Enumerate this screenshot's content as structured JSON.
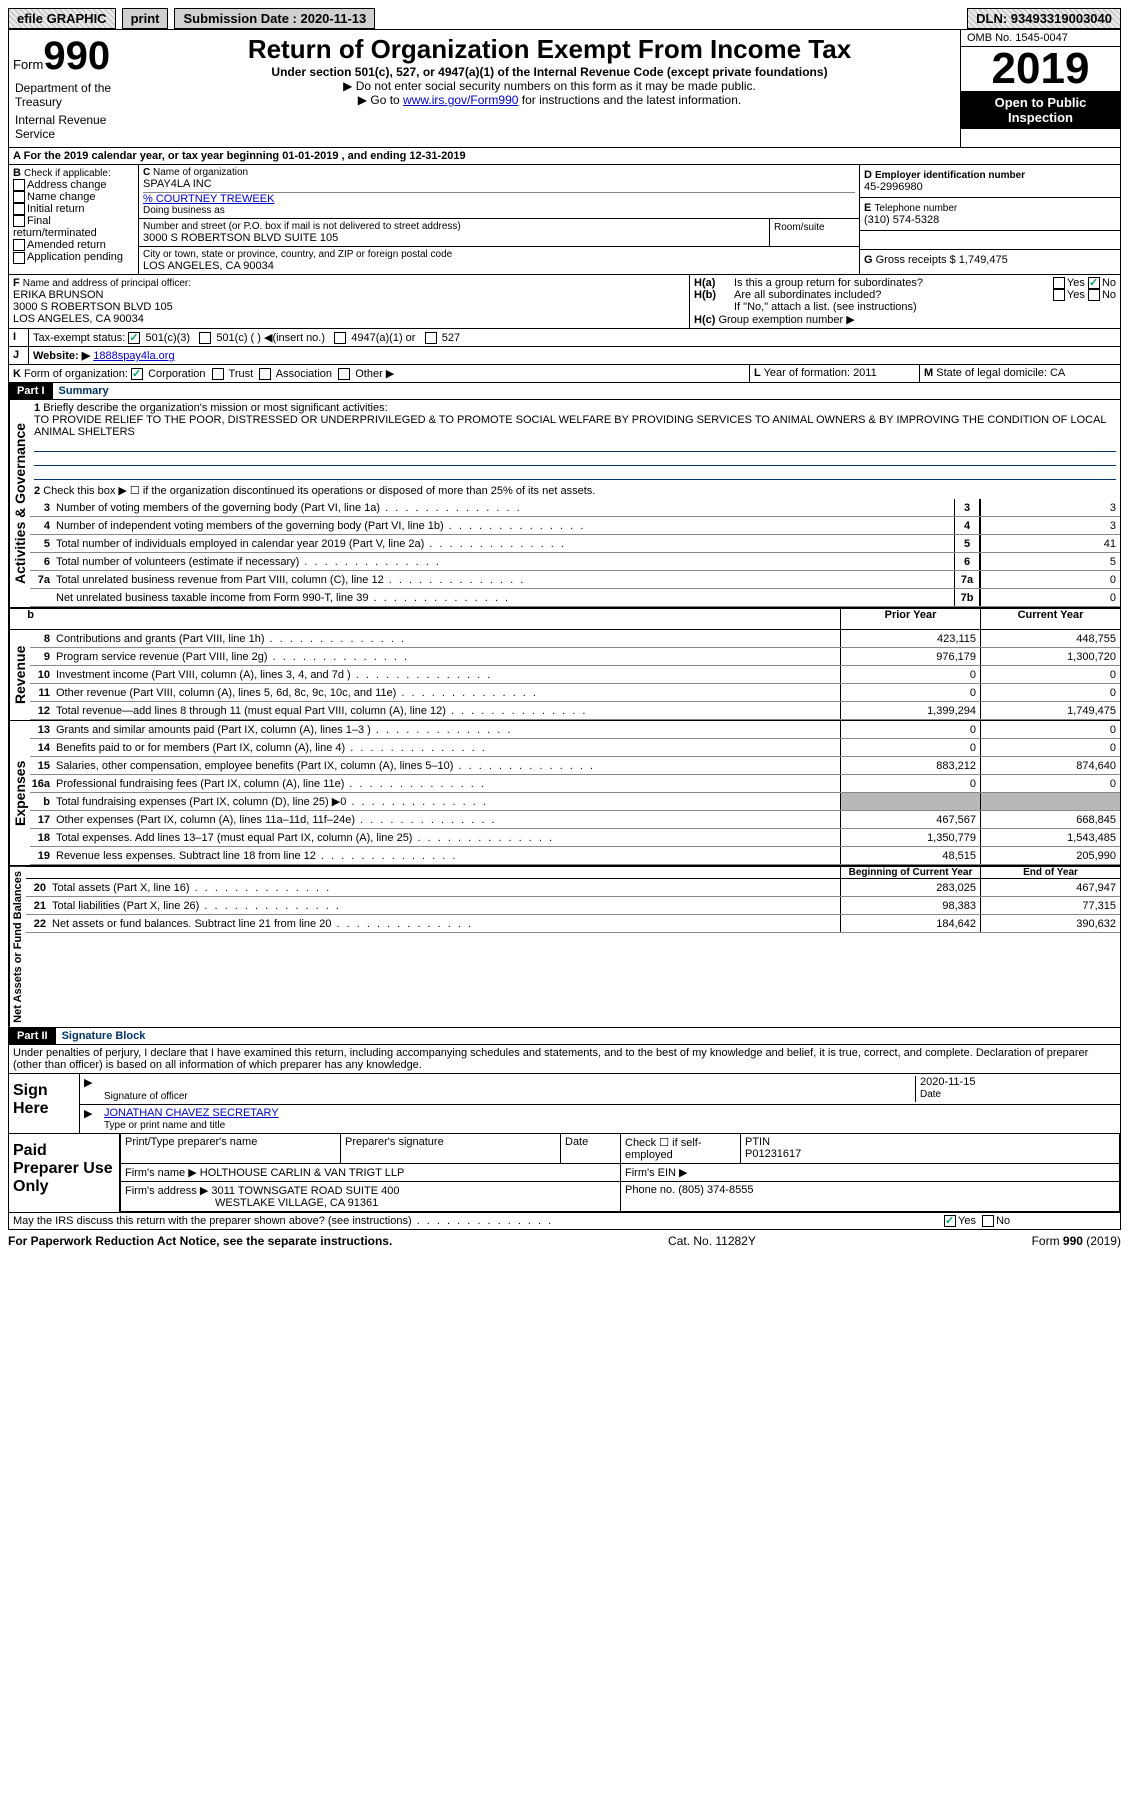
{
  "topbar": {
    "efile": "efile GRAPHIC",
    "print": "print",
    "sub_label": "Submission Date : 2020-11-13",
    "dln": "DLN: 93493319003040"
  },
  "header": {
    "form": "Form",
    "form_num": "990",
    "title": "Return of Organization Exempt From Income Tax",
    "sub1": "Under section 501(c), 527, or 4947(a)(1) of the Internal Revenue Code (except private foundations)",
    "sub2": "▶ Do not enter social security numbers on this form as it may be made public.",
    "sub3_pre": "▶ Go to ",
    "sub3_link": "www.irs.gov/Form990",
    "sub3_post": " for instructions and the latest information.",
    "omb": "OMB No. 1545-0047",
    "year": "2019",
    "open": "Open to Public Inspection",
    "dept1": "Department of the Treasury",
    "dept2": "Internal Revenue Service"
  },
  "A": {
    "text": "For the 2019 calendar year, or tax year beginning 01-01-2019     , and ending 12-31-2019"
  },
  "B": {
    "label": "Check if applicable:",
    "opts": [
      "Address change",
      "Name change",
      "Initial return",
      "Final return/terminated",
      "Amended return",
      "Application pending"
    ]
  },
  "C": {
    "name_lbl": "Name of organization",
    "name": "SPAY4LA INC",
    "care_lbl": "% COURTNEY TREWEEK",
    "dba_lbl": "Doing business as",
    "addr_lbl": "Number and street (or P.O. box if mail is not delivered to street address)",
    "room_lbl": "Room/suite",
    "addr": "3000 S ROBERTSON BLVD SUITE 105",
    "city_lbl": "City or town, state or province, country, and ZIP or foreign postal code",
    "city": "LOS ANGELES, CA  90034"
  },
  "D": {
    "lbl": "Employer identification number",
    "val": "45-2996980"
  },
  "E": {
    "lbl": "Telephone number",
    "val": "(310) 574-5328"
  },
  "G": {
    "lbl": "Gross receipts $",
    "val": "1,749,475"
  },
  "F": {
    "lbl": "Name and address of principal officer:",
    "name": "ERIKA BRUNSON",
    "addr1": "3000 S ROBERTSON BLVD 105",
    "addr2": "LOS ANGELES, CA  90034"
  },
  "H": {
    "a": "Is this a group return for subordinates?",
    "b": "Are all subordinates included?",
    "b_note": "If \"No,\" attach a list. (see instructions)",
    "c": "Group exemption number ▶",
    "yes": "Yes",
    "no": "No"
  },
  "I": {
    "lbl": "Tax-exempt status:",
    "opts": [
      "501(c)(3)",
      "501(c) (  ) ◀(insert no.)",
      "4947(a)(1) or",
      "527"
    ]
  },
  "J": {
    "lbl": "Website: ▶",
    "val": "1888spay4la.org"
  },
  "K": {
    "lbl": "Form of organization:",
    "opts": [
      "Corporation",
      "Trust",
      "Association",
      "Other ▶"
    ]
  },
  "L": {
    "lbl": "Year of formation:",
    "val": "2011"
  },
  "M": {
    "lbl": "State of legal domicile:",
    "val": "CA"
  },
  "part1": {
    "title": "Part I",
    "name": "Summary",
    "q1": "Briefly describe the organization's mission or most significant activities:",
    "mission": "TO PROVIDE RELIEF TO THE POOR, DISTRESSED OR UNDERPRIVILEGED & TO PROMOTE SOCIAL WELFARE BY PROVIDING SERVICES TO ANIMAL OWNERS & BY IMPROVING THE CONDITION OF LOCAL ANIMAL SHELTERS",
    "q2": "Check this box ▶ ☐  if the organization discontinued its operations or disposed of more than 25% of its net assets.",
    "lines_gov": [
      {
        "n": "3",
        "t": "Number of voting members of the governing body (Part VI, line 1a)",
        "box": "3",
        "v": "3"
      },
      {
        "n": "4",
        "t": "Number of independent voting members of the governing body (Part VI, line 1b)",
        "box": "4",
        "v": "3"
      },
      {
        "n": "5",
        "t": "Total number of individuals employed in calendar year 2019 (Part V, line 2a)",
        "box": "5",
        "v": "41"
      },
      {
        "n": "6",
        "t": "Total number of volunteers (estimate if necessary)",
        "box": "6",
        "v": "5"
      },
      {
        "n": "7a",
        "t": "Total unrelated business revenue from Part VIII, column (C), line 12",
        "box": "7a",
        "v": "0"
      },
      {
        "n": "",
        "t": "Net unrelated business taxable income from Form 990-T, line 39",
        "box": "7b",
        "v": "0"
      }
    ],
    "col_prior": "Prior Year",
    "col_current": "Current Year",
    "revenue": [
      {
        "n": "8",
        "t": "Contributions and grants (Part VIII, line 1h)",
        "p": "423,115",
        "c": "448,755"
      },
      {
        "n": "9",
        "t": "Program service revenue (Part VIII, line 2g)",
        "p": "976,179",
        "c": "1,300,720"
      },
      {
        "n": "10",
        "t": "Investment income (Part VIII, column (A), lines 3, 4, and 7d )",
        "p": "0",
        "c": "0"
      },
      {
        "n": "11",
        "t": "Other revenue (Part VIII, column (A), lines 5, 6d, 8c, 9c, 10c, and 11e)",
        "p": "0",
        "c": "0"
      },
      {
        "n": "12",
        "t": "Total revenue—add lines 8 through 11 (must equal Part VIII, column (A), line 12)",
        "p": "1,399,294",
        "c": "1,749,475"
      }
    ],
    "expenses": [
      {
        "n": "13",
        "t": "Grants and similar amounts paid (Part IX, column (A), lines 1–3 )",
        "p": "0",
        "c": "0"
      },
      {
        "n": "14",
        "t": "Benefits paid to or for members (Part IX, column (A), line 4)",
        "p": "0",
        "c": "0"
      },
      {
        "n": "15",
        "t": "Salaries, other compensation, employee benefits (Part IX, column (A), lines 5–10)",
        "p": "883,212",
        "c": "874,640"
      },
      {
        "n": "16a",
        "t": "Professional fundraising fees (Part IX, column (A), line 11e)",
        "p": "0",
        "c": "0"
      },
      {
        "n": "b",
        "t": "Total fundraising expenses (Part IX, column (D), line 25) ▶0",
        "p": "",
        "c": "",
        "shaded": true
      },
      {
        "n": "17",
        "t": "Other expenses (Part IX, column (A), lines 11a–11d, 11f–24e)",
        "p": "467,567",
        "c": "668,845"
      },
      {
        "n": "18",
        "t": "Total expenses. Add lines 13–17 (must equal Part IX, column (A), line 25)",
        "p": "1,350,779",
        "c": "1,543,485"
      },
      {
        "n": "19",
        "t": "Revenue less expenses. Subtract line 18 from line 12",
        "p": "48,515",
        "c": "205,990"
      }
    ],
    "col_begin": "Beginning of Current Year",
    "col_end": "End of Year",
    "netassets": [
      {
        "n": "20",
        "t": "Total assets (Part X, line 16)",
        "p": "283,025",
        "c": "467,947"
      },
      {
        "n": "21",
        "t": "Total liabilities (Part X, line 26)",
        "p": "98,383",
        "c": "77,315"
      },
      {
        "n": "22",
        "t": "Net assets or fund balances. Subtract line 21 from line 20",
        "p": "184,642",
        "c": "390,632"
      }
    ]
  },
  "part2": {
    "title": "Part II",
    "name": "Signature Block",
    "decl": "Under penalties of perjury, I declare that I have examined this return, including accompanying schedules and statements, and to the best of my knowledge and belief, it is true, correct, and complete. Declaration of preparer (other than officer) is based on all information of which preparer has any knowledge.",
    "sign_here": "Sign Here",
    "sig_officer": "Signature of officer",
    "date": "Date",
    "date_val": "2020-11-15",
    "name_title": "JONATHAN CHAVEZ  SECRETARY",
    "type_name": "Type or print name and title",
    "paid": "Paid Preparer Use Only",
    "prep_name_lbl": "Print/Type preparer's name",
    "prep_sig_lbl": "Preparer's signature",
    "date_lbl": "Date",
    "check_self": "Check ☐ if self-employed",
    "ptin_lbl": "PTIN",
    "ptin": "P01231617",
    "firm_name_lbl": "Firm's name    ▶",
    "firm_name": "HOLTHOUSE CARLIN & VAN TRIGT LLP",
    "firm_ein_lbl": "Firm's EIN ▶",
    "firm_addr_lbl": "Firm's address ▶",
    "firm_addr1": "3011 TOWNSGATE ROAD SUITE 400",
    "firm_addr2": "WESTLAKE VILLAGE, CA  91361",
    "phone_lbl": "Phone no.",
    "phone": "(805) 374-8555",
    "discuss": "May the IRS discuss this return with the preparer shown above? (see instructions)",
    "yes": "Yes",
    "no": "No"
  },
  "footer": {
    "left": "For Paperwork Reduction Act Notice, see the separate instructions.",
    "mid": "Cat. No. 11282Y",
    "right": "Form 990 (2019)"
  },
  "tabs": {
    "gov": "Activities & Governance",
    "rev": "Revenue",
    "exp": "Expenses",
    "net": "Net Assets or Fund Balances"
  }
}
